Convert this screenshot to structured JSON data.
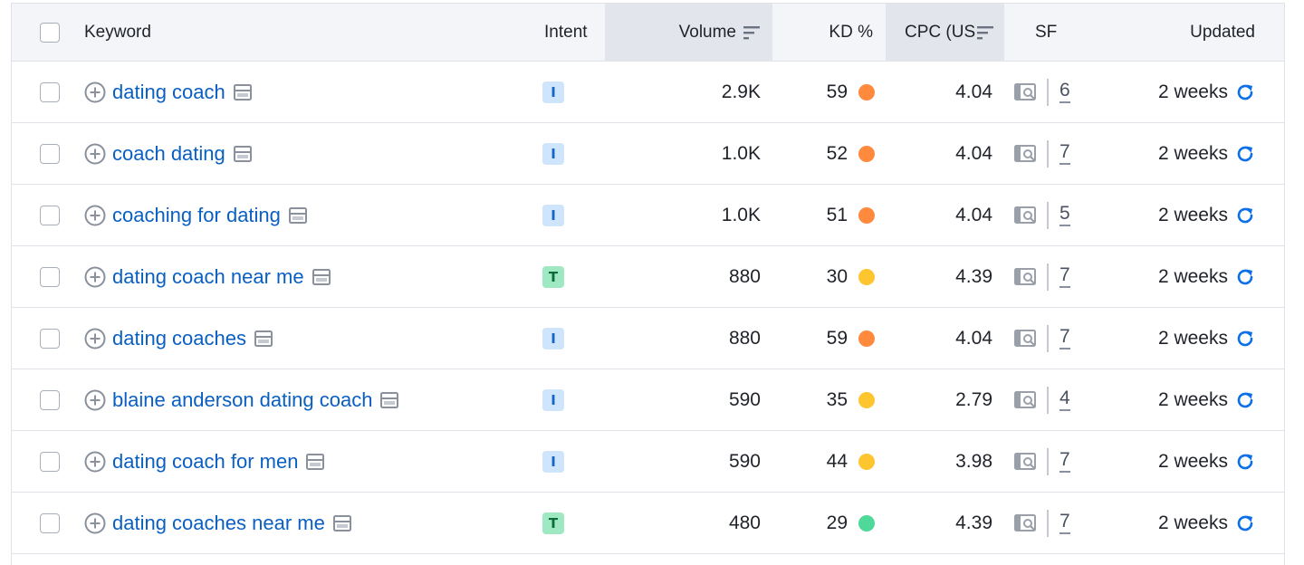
{
  "header": {
    "keyword": "Keyword",
    "intent": "Intent",
    "volume": "Volume",
    "kd": "KD %",
    "cpc": "CPC (US",
    "sf": "SF",
    "updated": "Updated"
  },
  "colors": {
    "link": "#0a5fc2",
    "intent_informational_bg": "#cfe5fb",
    "intent_informational_fg": "#1366c9",
    "intent_transactional_bg": "#9ee9c2",
    "intent_transactional_fg": "#0b6b3a",
    "kd_orange": "#ff8a3d",
    "kd_yellow": "#ffc531",
    "kd_green": "#4ed89a",
    "refresh": "#0a6fe8"
  },
  "rows": [
    {
      "keyword": "dating coach",
      "intent": "I",
      "volume": "2.9K",
      "kd": "59",
      "kd_level": "orange",
      "cpc": "4.04",
      "sf": "6",
      "updated": "2 weeks"
    },
    {
      "keyword": "coach dating",
      "intent": "I",
      "volume": "1.0K",
      "kd": "52",
      "kd_level": "orange",
      "cpc": "4.04",
      "sf": "7",
      "updated": "2 weeks"
    },
    {
      "keyword": "coaching for dating",
      "intent": "I",
      "volume": "1.0K",
      "kd": "51",
      "kd_level": "orange",
      "cpc": "4.04",
      "sf": "5",
      "updated": "2 weeks"
    },
    {
      "keyword": "dating coach near me",
      "intent": "T",
      "volume": "880",
      "kd": "30",
      "kd_level": "yellow",
      "cpc": "4.39",
      "sf": "7",
      "updated": "2 weeks"
    },
    {
      "keyword": "dating coaches",
      "intent": "I",
      "volume": "880",
      "kd": "59",
      "kd_level": "orange",
      "cpc": "4.04",
      "sf": "7",
      "updated": "2 weeks"
    },
    {
      "keyword": "blaine anderson dating coach",
      "intent": "I",
      "volume": "590",
      "kd": "35",
      "kd_level": "yellow",
      "cpc": "2.79",
      "sf": "4",
      "updated": "2 weeks"
    },
    {
      "keyword": "dating coach for men",
      "intent": "I",
      "volume": "590",
      "kd": "44",
      "kd_level": "yellow",
      "cpc": "3.98",
      "sf": "7",
      "updated": "2 weeks"
    },
    {
      "keyword": "dating coaches near me",
      "intent": "T",
      "volume": "480",
      "kd": "29",
      "kd_level": "green",
      "cpc": "4.39",
      "sf": "7",
      "updated": "2 weeks"
    }
  ]
}
